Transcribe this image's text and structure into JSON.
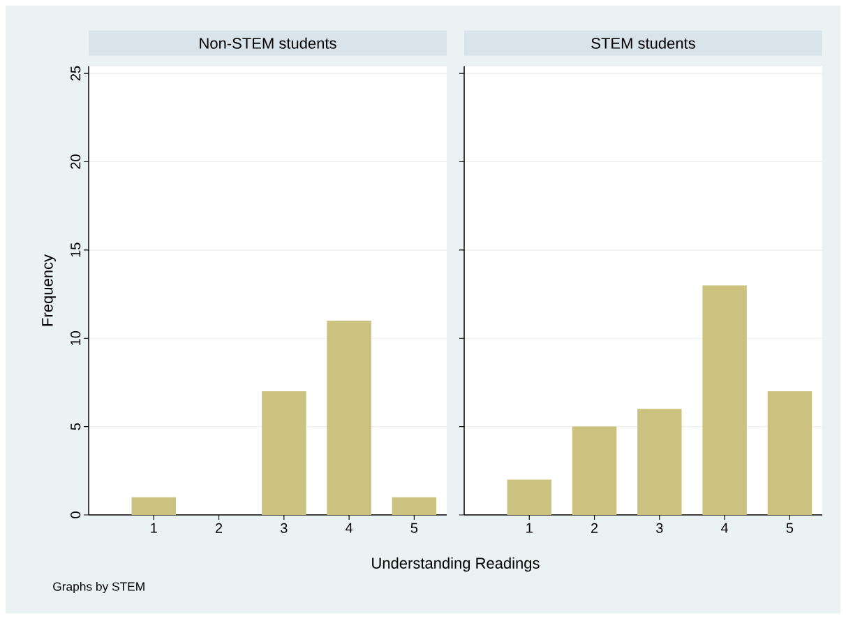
{
  "chart_data": [
    {
      "type": "bar",
      "title": "Non-STEM students",
      "xlabel": "Understanding Readings",
      "ylabel": "Frequency",
      "x": [
        1,
        2,
        3,
        4,
        5
      ],
      "values": [
        1,
        0,
        7,
        11,
        1
      ],
      "color": "#cbc27f",
      "xlim": [
        0,
        5.5
      ],
      "xticks": [
        1,
        2,
        3,
        4,
        5
      ],
      "ylim": [
        0,
        25.4
      ],
      "yticks": [
        0,
        5,
        10,
        15,
        20,
        25
      ],
      "grid": "y",
      "annotations": [
        "Graphs by STEM"
      ]
    },
    {
      "type": "bar",
      "title": "STEM students",
      "x": [
        1,
        2,
        3,
        4,
        5
      ],
      "values": [
        2,
        5,
        6,
        13,
        7
      ],
      "color": "#cbc27f",
      "xlim": [
        0,
        5.5
      ],
      "xticks": [
        1,
        2,
        3,
        4,
        5
      ],
      "ylim": [
        0,
        25.4
      ],
      "yticks": [
        0,
        5,
        10,
        15,
        20,
        25
      ],
      "grid": "y",
      "tick_labels": "x"
    }
  ]
}
